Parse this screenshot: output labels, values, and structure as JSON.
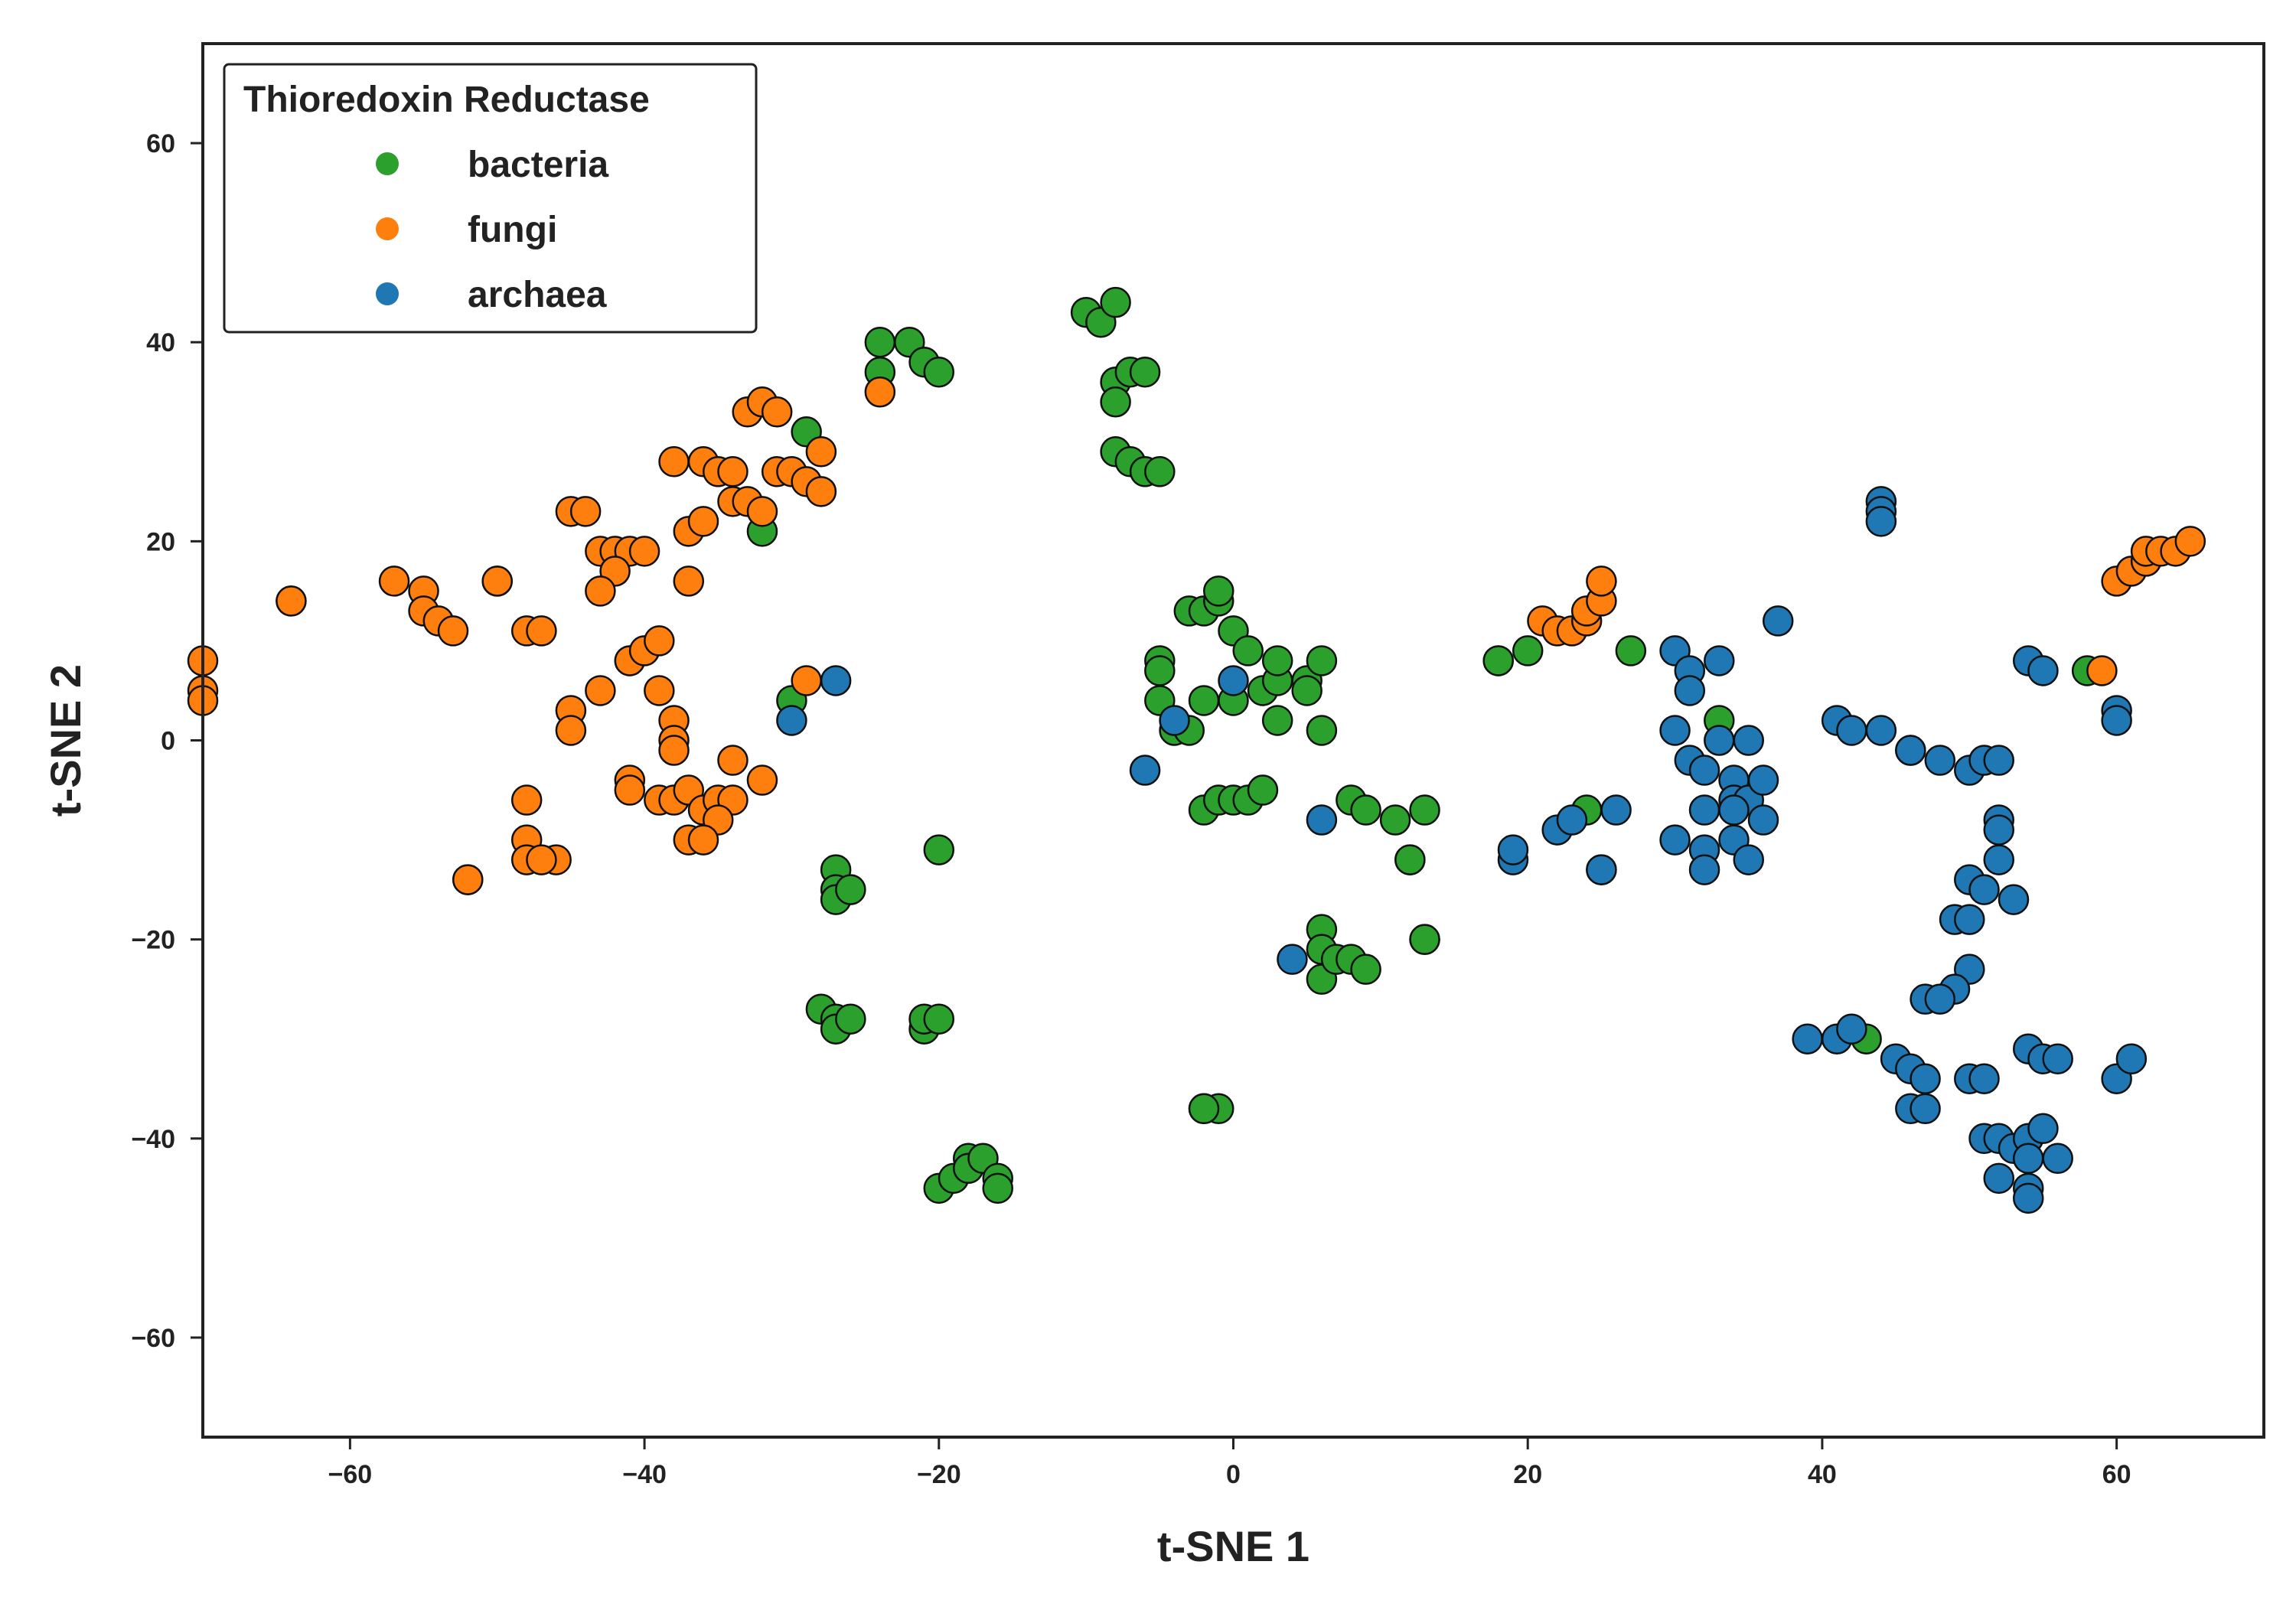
{
  "chart_data": {
    "type": "scatter",
    "title": "",
    "xlabel": "t-SNE 1",
    "ylabel": "t-SNE 2",
    "xlim": [
      -70,
      70
    ],
    "ylim": [
      -70,
      70
    ],
    "xticks": [
      -60,
      -40,
      -20,
      0,
      20,
      40,
      60
    ],
    "yticks": [
      -60,
      -40,
      -20,
      0,
      20,
      40,
      60
    ],
    "grid": false,
    "legend": {
      "title": "Thioredoxin Reductase",
      "placement": "top-left"
    },
    "series": [
      {
        "name": "bacteria",
        "color": "#2ca02c",
        "points": [
          [
            -24,
            40
          ],
          [
            -22,
            40
          ],
          [
            -21,
            38
          ],
          [
            -20,
            37
          ],
          [
            -24,
            37
          ],
          [
            -29,
            31
          ],
          [
            -32,
            21
          ],
          [
            -10,
            43
          ],
          [
            -9,
            42
          ],
          [
            -8,
            44
          ],
          [
            -8,
            36
          ],
          [
            -7,
            37
          ],
          [
            -6,
            37
          ],
          [
            -8,
            34
          ],
          [
            -8,
            29
          ],
          [
            -7,
            28
          ],
          [
            -6,
            27
          ],
          [
            -5,
            27
          ],
          [
            -3,
            13
          ],
          [
            -2,
            13
          ],
          [
            -1,
            14
          ],
          [
            -1,
            15
          ],
          [
            0,
            11
          ],
          [
            1,
            9
          ],
          [
            -5,
            8
          ],
          [
            -5,
            7
          ],
          [
            -5,
            4
          ],
          [
            -2,
            4
          ],
          [
            0,
            4
          ],
          [
            2,
            5
          ],
          [
            3,
            6
          ],
          [
            3,
            8
          ],
          [
            5,
            6
          ],
          [
            5,
            5
          ],
          [
            6,
            8
          ],
          [
            3,
            2
          ],
          [
            6,
            1
          ],
          [
            -4,
            1
          ],
          [
            -3,
            1
          ],
          [
            -2,
            -7
          ],
          [
            -1,
            -6
          ],
          [
            0,
            -6
          ],
          [
            1,
            -6
          ],
          [
            2,
            -5
          ],
          [
            8,
            -6
          ],
          [
            9,
            -7
          ],
          [
            11,
            -8
          ],
          [
            13,
            -7
          ],
          [
            12,
            -12
          ],
          [
            12,
            -12
          ],
          [
            13,
            -20
          ],
          [
            13,
            -20
          ],
          [
            6,
            -19
          ],
          [
            6,
            -21
          ],
          [
            6,
            -24
          ],
          [
            7,
            -22
          ],
          [
            8,
            -22
          ],
          [
            9,
            -23
          ],
          [
            -2,
            -37
          ],
          [
            -1,
            -37
          ],
          [
            -2,
            -37
          ],
          [
            -20,
            -11
          ],
          [
            -27,
            -13
          ],
          [
            -27,
            -15
          ],
          [
            -27,
            -16
          ],
          [
            -26,
            -15
          ],
          [
            -28,
            -27
          ],
          [
            -27,
            -28
          ],
          [
            -27,
            -29
          ],
          [
            -26,
            -28
          ],
          [
            -21,
            -29
          ],
          [
            -21,
            -28
          ],
          [
            -20,
            -28
          ],
          [
            -20,
            -45
          ],
          [
            -19,
            -44
          ],
          [
            -18,
            -42
          ],
          [
            -18,
            -43
          ],
          [
            -17,
            -42
          ],
          [
            -16,
            -44
          ],
          [
            -16,
            -45
          ],
          [
            -30,
            4
          ],
          [
            18,
            8
          ],
          [
            18,
            8
          ],
          [
            20,
            9
          ],
          [
            24,
            -7
          ],
          [
            27,
            9
          ],
          [
            33,
            2
          ],
          [
            43,
            -30
          ],
          [
            58,
            7
          ]
        ]
      },
      {
        "name": "fungi",
        "color": "#ff7f0e",
        "points": [
          [
            -70,
            8
          ],
          [
            -70,
            5
          ],
          [
            -70,
            4
          ],
          [
            -64,
            14
          ],
          [
            -64,
            14
          ],
          [
            -57,
            16
          ],
          [
            -55,
            15
          ],
          [
            -55,
            13
          ],
          [
            -54,
            12
          ],
          [
            -53,
            11
          ],
          [
            -52,
            -14
          ],
          [
            -52,
            -14
          ],
          [
            -50,
            16
          ],
          [
            -50,
            16
          ],
          [
            -48,
            11
          ],
          [
            -47,
            11
          ],
          [
            -48,
            -6
          ],
          [
            -48,
            -10
          ],
          [
            -48,
            -12
          ],
          [
            -46,
            -12
          ],
          [
            -47,
            -12
          ],
          [
            -45,
            23
          ],
          [
            -44,
            23
          ],
          [
            -43,
            19
          ],
          [
            -42,
            19
          ],
          [
            -41,
            19
          ],
          [
            -40,
            19
          ],
          [
            -42,
            17
          ],
          [
            -43,
            15
          ],
          [
            -45,
            3
          ],
          [
            -45,
            1
          ],
          [
            -43,
            5
          ],
          [
            -41,
            8
          ],
          [
            -41,
            8
          ],
          [
            -40,
            9
          ],
          [
            -39,
            10
          ],
          [
            -39,
            5
          ],
          [
            -38,
            2
          ],
          [
            -38,
            0
          ],
          [
            -38,
            -1
          ],
          [
            -41,
            -4
          ],
          [
            -41,
            -5
          ],
          [
            -39,
            -6
          ],
          [
            -38,
            -6
          ],
          [
            -38,
            28
          ],
          [
            -37,
            16
          ],
          [
            -36,
            28
          ],
          [
            -35,
            27
          ],
          [
            -34,
            27
          ],
          [
            -37,
            21
          ],
          [
            -36,
            22
          ],
          [
            -34,
            24
          ],
          [
            -33,
            24
          ],
          [
            -32,
            23
          ],
          [
            -33,
            33
          ],
          [
            -32,
            34
          ],
          [
            -31,
            33
          ],
          [
            -31,
            27
          ],
          [
            -30,
            27
          ],
          [
            -29,
            26
          ],
          [
            -28,
            25
          ],
          [
            -28,
            29
          ],
          [
            -24,
            35
          ],
          [
            -29,
            6
          ],
          [
            -37,
            -5
          ],
          [
            -36,
            -7
          ],
          [
            -35,
            -6
          ],
          [
            -34,
            -6
          ],
          [
            -34,
            -2
          ],
          [
            -35,
            -8
          ],
          [
            -37,
            -10
          ],
          [
            -36,
            -10
          ],
          [
            -32,
            -4
          ],
          [
            21,
            12
          ],
          [
            22,
            11
          ],
          [
            23,
            11
          ],
          [
            24,
            12
          ],
          [
            24,
            13
          ],
          [
            25,
            14
          ],
          [
            25,
            16
          ],
          [
            59,
            7
          ],
          [
            60,
            16
          ],
          [
            61,
            17
          ],
          [
            62,
            18
          ],
          [
            62,
            19
          ],
          [
            63,
            19
          ],
          [
            64,
            19
          ],
          [
            65,
            20
          ]
        ]
      },
      {
        "name": "archaea",
        "color": "#1f77b4",
        "points": [
          [
            -27,
            6
          ],
          [
            -30,
            2
          ],
          [
            -4,
            2
          ],
          [
            -6,
            -3
          ],
          [
            0,
            6
          ],
          [
            6,
            -8
          ],
          [
            4,
            -22
          ],
          [
            19,
            -12
          ],
          [
            19,
            -11
          ],
          [
            22,
            -9
          ],
          [
            23,
            -8
          ],
          [
            25,
            -13
          ],
          [
            25,
            -13
          ],
          [
            26,
            -7
          ],
          [
            30,
            9
          ],
          [
            31,
            7
          ],
          [
            33,
            8
          ],
          [
            31,
            5
          ],
          [
            30,
            1
          ],
          [
            31,
            -2
          ],
          [
            32,
            -3
          ],
          [
            33,
            0
          ],
          [
            34,
            -4
          ],
          [
            35,
            0
          ],
          [
            34,
            -6
          ],
          [
            35,
            -6
          ],
          [
            36,
            -4
          ],
          [
            36,
            -8
          ],
          [
            34,
            -7
          ],
          [
            32,
            -7
          ],
          [
            32,
            -11
          ],
          [
            32,
            -13
          ],
          [
            34,
            -10
          ],
          [
            35,
            -12
          ],
          [
            30,
            -10
          ],
          [
            37,
            12
          ],
          [
            44,
            24
          ],
          [
            44,
            23
          ],
          [
            44,
            22
          ],
          [
            41,
            2
          ],
          [
            42,
            1
          ],
          [
            44,
            1
          ],
          [
            46,
            -1
          ],
          [
            46,
            -1
          ],
          [
            48,
            -2
          ],
          [
            50,
            -3
          ],
          [
            51,
            -2
          ],
          [
            52,
            -2
          ],
          [
            54,
            8
          ],
          [
            55,
            7
          ],
          [
            60,
            3
          ],
          [
            60,
            2
          ],
          [
            52,
            -8
          ],
          [
            52,
            -9
          ],
          [
            52,
            -12
          ],
          [
            50,
            -14
          ],
          [
            51,
            -15
          ],
          [
            53,
            -16
          ],
          [
            49,
            -18
          ],
          [
            50,
            -18
          ],
          [
            50,
            -23
          ],
          [
            49,
            -25
          ],
          [
            47,
            -26
          ],
          [
            48,
            -26
          ],
          [
            39,
            -30
          ],
          [
            41,
            -30
          ],
          [
            42,
            -29
          ],
          [
            45,
            -32
          ],
          [
            46,
            -33
          ],
          [
            47,
            -34
          ],
          [
            46,
            -37
          ],
          [
            47,
            -37
          ],
          [
            50,
            -34
          ],
          [
            51,
            -34
          ],
          [
            51,
            -40
          ],
          [
            52,
            -40
          ],
          [
            53,
            -41
          ],
          [
            54,
            -40
          ],
          [
            55,
            -39
          ],
          [
            54,
            -42
          ],
          [
            52,
            -44
          ],
          [
            54,
            -45
          ],
          [
            54,
            -46
          ],
          [
            56,
            -42
          ],
          [
            54,
            -31
          ],
          [
            55,
            -32
          ],
          [
            56,
            -32
          ],
          [
            60,
            -34
          ],
          [
            61,
            -32
          ]
        ]
      }
    ]
  }
}
